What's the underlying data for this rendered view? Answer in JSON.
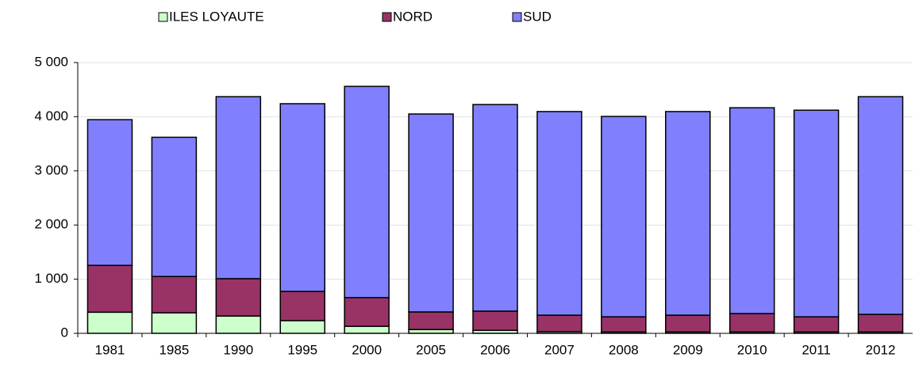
{
  "chart_data": {
    "type": "stacked_bar",
    "categories": [
      "1981",
      "1985",
      "1990",
      "1995",
      "2000",
      "2005",
      "2006",
      "2007",
      "2008",
      "2009",
      "2010",
      "2011",
      "2012"
    ],
    "series": [
      {
        "name": "ILES LOYAUTE",
        "color": "#ccffcc",
        "values": [
          390,
          380,
          320,
          235,
          130,
          70,
          55,
          30,
          25,
          25,
          25,
          25,
          25
        ]
      },
      {
        "name": "NORD",
        "color": "#993366",
        "values": [
          865,
          670,
          690,
          540,
          530,
          325,
          355,
          305,
          280,
          310,
          340,
          280,
          325
        ]
      },
      {
        "name": "SUD",
        "color": "#8080ff",
        "values": [
          2690,
          2570,
          3360,
          3465,
          3900,
          3655,
          3815,
          3760,
          3700,
          3760,
          3800,
          3815,
          4020
        ]
      }
    ],
    "ylim": [
      0,
      5000
    ],
    "yticks": [
      0,
      {
        "value": 1000,
        "label": "1 000"
      },
      {
        "value": 2000,
        "label": "2 000"
      },
      {
        "value": 3000,
        "label": "3 000"
      },
      {
        "value": 4000,
        "label": "4 000"
      },
      {
        "value": 5000,
        "label": "5 000"
      }
    ],
    "grid": true,
    "legend": "top"
  }
}
